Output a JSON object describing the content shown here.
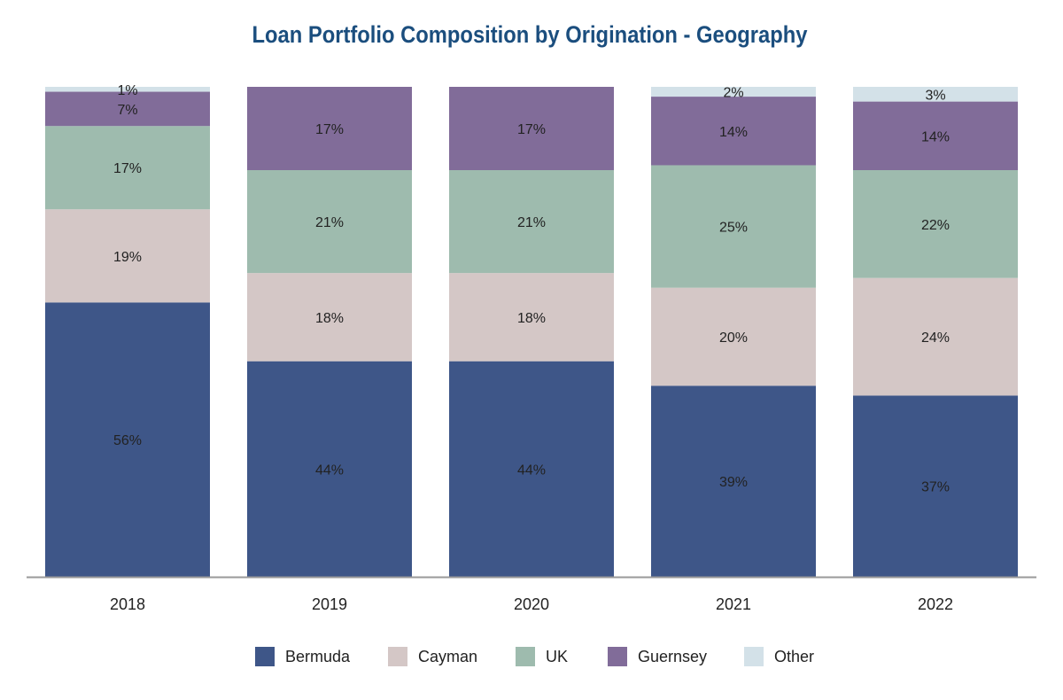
{
  "chart_data": {
    "type": "bar",
    "stacked": true,
    "title": "Loan Portfolio Composition by Origination - Geography",
    "categories": [
      "2018",
      "2019",
      "2020",
      "2021",
      "2022"
    ],
    "series": [
      {
        "name": "Bermuda",
        "color": "#3e5688",
        "values": [
          56,
          44,
          44,
          39,
          37
        ],
        "labels": [
          "56%",
          "44%",
          "44%",
          "39%",
          "37%"
        ]
      },
      {
        "name": "Cayman",
        "color": "#d4c7c6",
        "values": [
          19,
          18,
          18,
          20,
          24
        ],
        "labels": [
          "19%",
          "18%",
          "18%",
          "20%",
          "24%"
        ]
      },
      {
        "name": "UK",
        "color": "#9ebbae",
        "values": [
          17,
          21,
          21,
          25,
          22
        ],
        "labels": [
          "17%",
          "21%",
          "21%",
          "25%",
          "22%"
        ]
      },
      {
        "name": "Guernsey",
        "color": "#816c99",
        "values": [
          7,
          17,
          17,
          14,
          14
        ],
        "labels": [
          "7%",
          "17%",
          "17%",
          "14%",
          "14%"
        ]
      },
      {
        "name": "Other",
        "color": "#d3e1e8",
        "values": [
          1,
          0,
          0,
          2,
          3
        ],
        "labels": [
          "1%",
          "",
          "",
          "2%",
          "3%"
        ]
      }
    ],
    "xlabel": "",
    "ylabel": "",
    "ylim": [
      0,
      100
    ],
    "grid": false,
    "legend": "bottom",
    "axis_color": "#9a9a9a"
  }
}
